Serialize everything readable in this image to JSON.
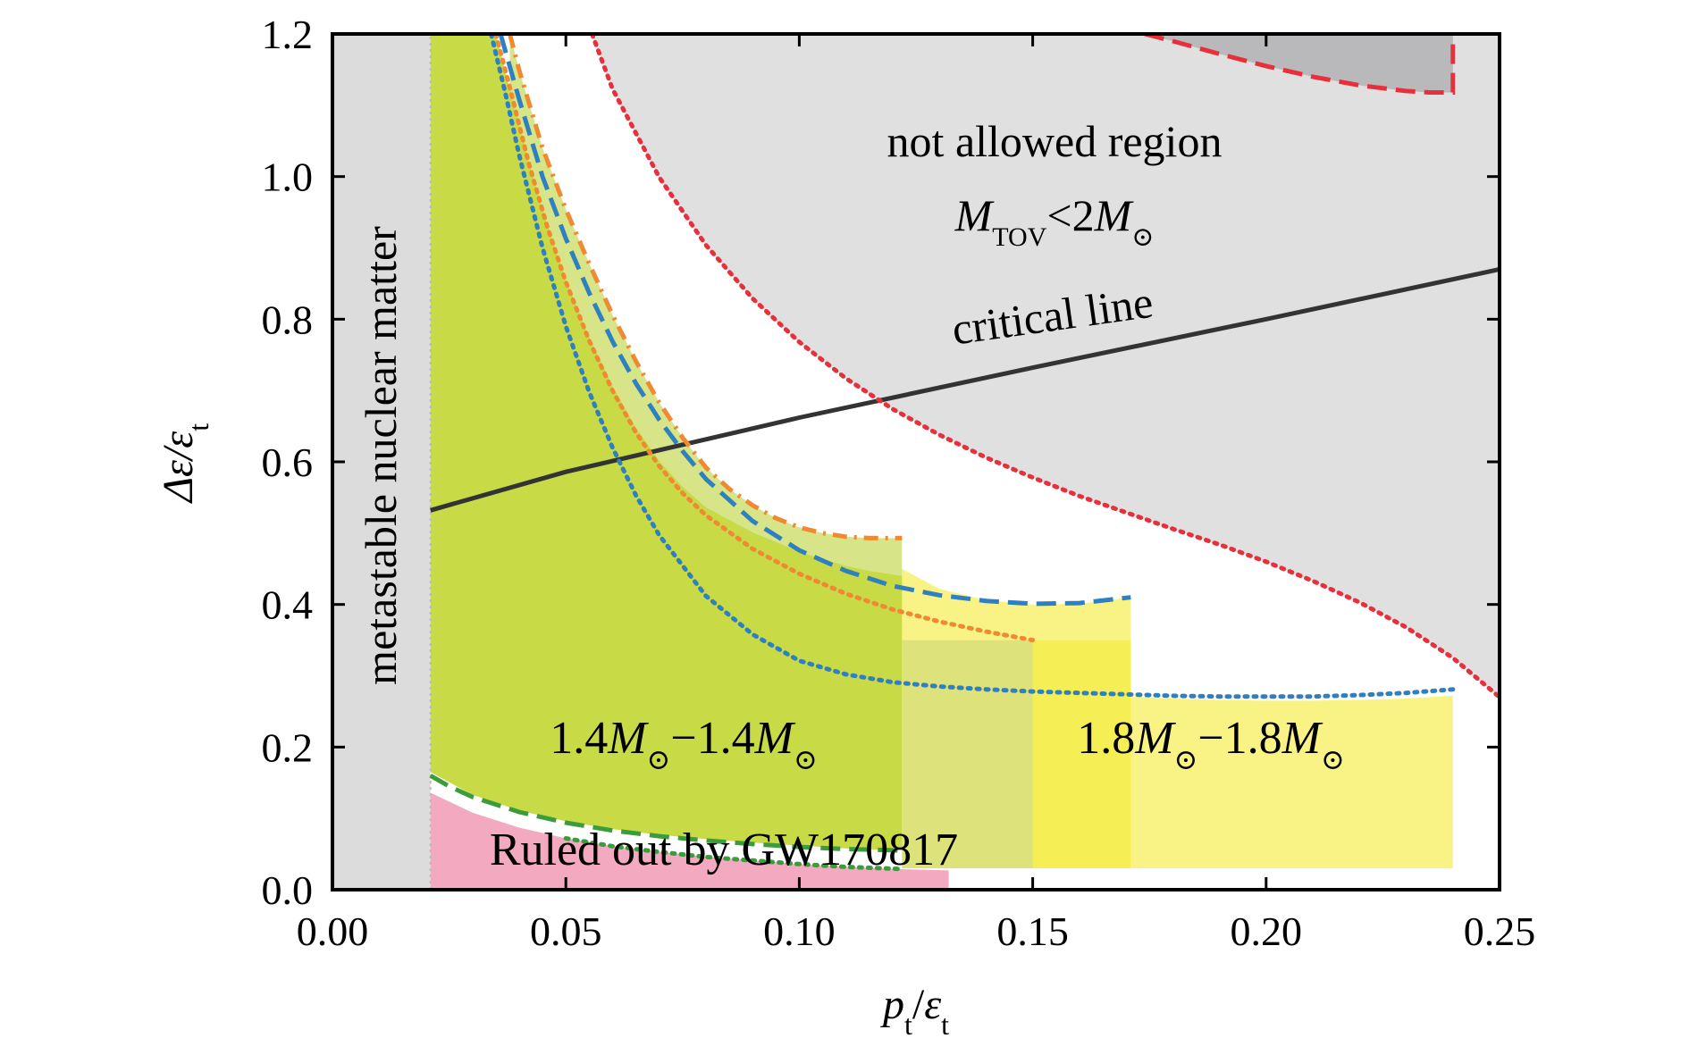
{
  "chart_data": {
    "type": "area",
    "xlabel": "p_t/ε_t",
    "xlabel_parts": {
      "p": "p",
      "p_sub": "t",
      "slash": "/",
      "eps": "ε",
      "eps_sub": "t"
    },
    "ylabel": "Δε/ε_t",
    "ylabel_parts": {
      "delta": "Δε/ε",
      "sub": "t"
    },
    "xlim": [
      0.0,
      0.25
    ],
    "ylim": [
      0.0,
      1.2
    ],
    "xticks": [
      0.0,
      0.05,
      0.1,
      0.15,
      0.2,
      0.25
    ],
    "xtick_labels": [
      "0.00",
      "0.05",
      "0.10",
      "0.15",
      "0.20",
      "0.25"
    ],
    "yticks": [
      0.0,
      0.2,
      0.4,
      0.6,
      0.8,
      1.0,
      1.2
    ],
    "ytick_labels": [
      "0.0",
      "0.2",
      "0.4",
      "0.6",
      "0.8",
      "1.0",
      "1.2"
    ],
    "grid": false,
    "colors": {
      "not_allowed": "#e0e0e0",
      "metastable": "#dcdcdc",
      "dark_region": "#b9b9bb",
      "green_region": "#c8da45",
      "light_green_region": "#d7e488",
      "yellow_region": "#f5ef55",
      "light_yellow_region": "#f8f384",
      "pink_region": "#f3a9bf",
      "critical_line": "#333333",
      "red_dotted": "#e8303c",
      "red_dashed": "#e8303c",
      "orange": "#f08a32",
      "blue": "#2f80c0",
      "green_dashed": "#3b9c3b",
      "label_green": "#3c9a3c",
      "label_yellow": "#e8b84a",
      "label_red": "#e8303c"
    },
    "regions": {
      "metastable": {
        "x": [
          0.0,
          0.021
        ],
        "y": [
          0.0,
          1.2
        ]
      },
      "not_allowed_boundary": {
        "x": [
          0.0556,
          0.06,
          0.07,
          0.08,
          0.09,
          0.1,
          0.11,
          0.12,
          0.13,
          0.14,
          0.15,
          0.16,
          0.17,
          0.18,
          0.19,
          0.2,
          0.21,
          0.22,
          0.23,
          0.24,
          0.25
        ],
        "y": [
          1.2,
          1.123,
          0.999,
          0.904,
          0.829,
          0.768,
          0.717,
          0.674,
          0.638,
          0.606,
          0.578,
          0.552,
          0.529,
          0.506,
          0.484,
          0.46,
          0.433,
          0.403,
          0.368,
          0.325,
          0.27
        ]
      },
      "dark_region": {
        "x": [
          0.174,
          0.18,
          0.19,
          0.2,
          0.21,
          0.22,
          0.23,
          0.235,
          0.24,
          0.24
        ],
        "y": [
          1.2,
          1.19,
          1.172,
          1.155,
          1.14,
          1.128,
          1.12,
          1.118,
          1.118,
          1.2
        ]
      },
      "green_region_upper": {
        "x": [
          0.021,
          0.035,
          0.038,
          0.042,
          0.046,
          0.05,
          0.055,
          0.06,
          0.065,
          0.07,
          0.075,
          0.08,
          0.09,
          0.1,
          0.11,
          0.115,
          0.122
        ],
        "y": [
          1.2,
          1.2,
          1.121,
          1.021,
          0.933,
          0.855,
          0.775,
          0.706,
          0.648,
          0.601,
          0.565,
          0.536,
          0.501,
          0.474,
          0.454,
          0.447,
          0.44
        ]
      },
      "green_region_lower": {
        "x": [
          0.021,
          0.03,
          0.04,
          0.05,
          0.06,
          0.07,
          0.08,
          0.09,
          0.1,
          0.11,
          0.122
        ],
        "y": [
          0.165,
          0.133,
          0.111,
          0.096,
          0.085,
          0.077,
          0.071,
          0.066,
          0.062,
          0.058,
          0.055
        ]
      },
      "light_green_top": {
        "x": [
          0.038,
          0.04,
          0.045,
          0.05,
          0.055,
          0.06,
          0.065,
          0.07,
          0.075,
          0.08,
          0.085,
          0.09,
          0.095,
          0.1,
          0.105,
          0.11,
          0.115,
          0.122
        ],
        "y": [
          1.2,
          1.149,
          1.04,
          0.954,
          0.878,
          0.806,
          0.741,
          0.683,
          0.634,
          0.592,
          0.562,
          0.539,
          0.521,
          0.508,
          0.5,
          0.495,
          0.493,
          0.493
        ]
      },
      "yellow_upper": {
        "x": [
          0.122,
          0.13,
          0.14,
          0.15,
          0.16,
          0.171
        ],
        "y": [
          0.45,
          0.422,
          0.406,
          0.4,
          0.401,
          0.41
        ]
      },
      "yellow_bottom": 0.03,
      "light_yellow_upper": {
        "x": [
          0.171,
          0.18,
          0.19,
          0.2,
          0.21,
          0.22,
          0.23,
          0.24
        ],
        "y": [
          0.271,
          0.268,
          0.266,
          0.265,
          0.265,
          0.266,
          0.268,
          0.272
        ]
      },
      "pink_boundary": {
        "x": [
          0.021,
          0.03,
          0.04,
          0.05,
          0.06,
          0.07,
          0.08,
          0.09,
          0.1,
          0.11,
          0.12,
          0.132
        ],
        "y": [
          0.136,
          0.108,
          0.087,
          0.072,
          0.061,
          0.053,
          0.046,
          0.041,
          0.036,
          0.032,
          0.029,
          0.027
        ]
      }
    },
    "series": [
      {
        "style": "solid",
        "color": "critical_line",
        "x": [
          0.021,
          0.05,
          0.1,
          0.15,
          0.2,
          0.25
        ],
        "y": [
          0.532,
          0.586,
          0.662,
          0.732,
          0.8,
          0.87
        ]
      },
      {
        "style": "dotted",
        "color": "red_dotted",
        "x": [
          0.0556,
          0.06,
          0.07,
          0.08,
          0.09,
          0.1,
          0.11,
          0.12,
          0.13,
          0.14,
          0.15,
          0.16,
          0.17,
          0.18,
          0.19,
          0.2,
          0.21,
          0.22,
          0.23,
          0.24,
          0.25
        ],
        "y": [
          1.2,
          1.123,
          0.999,
          0.904,
          0.829,
          0.768,
          0.717,
          0.674,
          0.638,
          0.606,
          0.578,
          0.552,
          0.529,
          0.506,
          0.484,
          0.46,
          0.433,
          0.403,
          0.368,
          0.325,
          0.27
        ]
      },
      {
        "style": "dashed",
        "color": "red_dashed",
        "x": [
          0.174,
          0.18,
          0.19,
          0.2,
          0.21,
          0.22,
          0.23,
          0.235,
          0.24,
          0.24
        ],
        "y": [
          1.2,
          1.19,
          1.172,
          1.155,
          1.14,
          1.128,
          1.12,
          1.118,
          1.118,
          1.2
        ]
      },
      {
        "style": "dashdot",
        "color": "orange",
        "x": [
          0.038,
          0.04,
          0.045,
          0.05,
          0.055,
          0.06,
          0.065,
          0.07,
          0.075,
          0.08,
          0.085,
          0.09,
          0.095,
          0.1,
          0.105,
          0.11,
          0.115,
          0.122
        ],
        "y": [
          1.2,
          1.149,
          1.04,
          0.954,
          0.878,
          0.806,
          0.741,
          0.683,
          0.634,
          0.592,
          0.562,
          0.539,
          0.521,
          0.508,
          0.5,
          0.495,
          0.493,
          0.493
        ]
      },
      {
        "style": "dashed",
        "color": "blue",
        "x": [
          0.036,
          0.04,
          0.045,
          0.05,
          0.055,
          0.06,
          0.065,
          0.07,
          0.075,
          0.08,
          0.09,
          0.1,
          0.11,
          0.12,
          0.13,
          0.14,
          0.15,
          0.16,
          0.171
        ],
        "y": [
          1.2,
          1.108,
          1.0,
          0.913,
          0.837,
          0.769,
          0.71,
          0.659,
          0.615,
          0.576,
          0.517,
          0.476,
          0.447,
          0.426,
          0.413,
          0.405,
          0.401,
          0.402,
          0.41
        ]
      },
      {
        "style": "dotted",
        "color": "orange",
        "x": [
          0.035,
          0.038,
          0.042,
          0.046,
          0.05,
          0.055,
          0.06,
          0.065,
          0.07,
          0.075,
          0.08,
          0.09,
          0.1,
          0.11,
          0.12,
          0.13,
          0.14,
          0.15
        ],
        "y": [
          1.2,
          1.125,
          1.02,
          0.93,
          0.852,
          0.77,
          0.7,
          0.641,
          0.594,
          0.556,
          0.525,
          0.478,
          0.443,
          0.415,
          0.393,
          0.376,
          0.362,
          0.35
        ]
      },
      {
        "style": "dotted",
        "color": "blue",
        "x": [
          0.034,
          0.037,
          0.04,
          0.045,
          0.05,
          0.055,
          0.06,
          0.065,
          0.07,
          0.08,
          0.09,
          0.1,
          0.11,
          0.12,
          0.13,
          0.14,
          0.15,
          0.16,
          0.17,
          0.18,
          0.19,
          0.2,
          0.21,
          0.22,
          0.23,
          0.24
        ],
        "y": [
          1.2,
          1.118,
          1.03,
          0.9,
          0.79,
          0.698,
          0.62,
          0.553,
          0.497,
          0.412,
          0.358,
          0.321,
          0.302,
          0.291,
          0.285,
          0.281,
          0.278,
          0.276,
          0.274,
          0.272,
          0.271,
          0.271,
          0.271,
          0.273,
          0.276,
          0.281
        ]
      },
      {
        "style": "dashed",
        "color": "green_dashed",
        "x": [
          0.021,
          0.025,
          0.03,
          0.04,
          0.05,
          0.06,
          0.07,
          0.08,
          0.09,
          0.1,
          0.11,
          0.122
        ],
        "y": [
          0.16,
          0.145,
          0.13,
          0.109,
          0.094,
          0.083,
          0.075,
          0.069,
          0.064,
          0.06,
          0.057,
          0.055
        ]
      },
      {
        "style": "dotted",
        "color": "green_dashed",
        "x": [
          0.05,
          0.06,
          0.07,
          0.08,
          0.09,
          0.1,
          0.11,
          0.122
        ],
        "y": [
          0.072,
          0.061,
          0.053,
          0.046,
          0.041,
          0.036,
          0.032,
          0.029
        ]
      }
    ],
    "annotations": {
      "not_allowed": "not allowed region",
      "mtov_m": "M",
      "mtov_sub": "TOV",
      "mtov_rest": "<2M",
      "odot": "⊙",
      "critical": "critical line",
      "metastable": "metastable nuclear matter",
      "label_14_a": "1.4M",
      "label_14_b": "−1.4M",
      "label_18_a": "1.8M",
      "label_18_b": "−1.8M",
      "ruled_out": "Ruled out by GW170817"
    }
  }
}
